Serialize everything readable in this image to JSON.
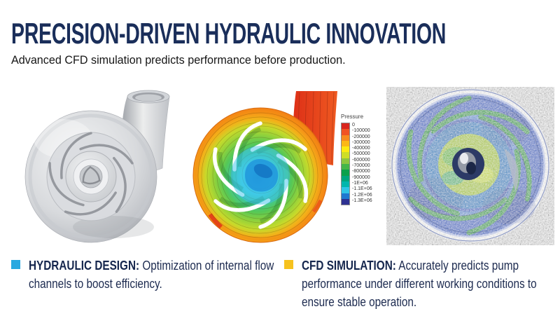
{
  "header": {
    "title": "PRECISION-DRIVEN HYDRAULIC INNOVATION",
    "subtitle": "Advanced CFD simulation predicts performance before production."
  },
  "figures": {
    "cfd_contour": {
      "legend_title": "Pressure",
      "legend_labels": [
        "0",
        "-100000",
        "-200000",
        "-300000",
        "-400000",
        "-500000",
        "-600000",
        "-700000",
        "-800000",
        "-900000",
        "-1E+06",
        "-1.1E+06",
        "-1.2E+06",
        "-1.3E+06"
      ],
      "legend_colors": [
        "#d9251d",
        "#f05323",
        "#f68b1e",
        "#fbb817",
        "#fdea11",
        "#cede26",
        "#8dc63f",
        "#45b649",
        "#0ba04c",
        "#00a57e",
        "#00b6ad",
        "#2fc4e5",
        "#1e78d0",
        "#2e3192"
      ]
    }
  },
  "bullets": [
    {
      "label": "HYDRAULIC DESIGN:",
      "text": " Optimization of internal flow channels to boost efficiency.",
      "marker_color": "#29a8e0"
    },
    {
      "label": "CFD SIMULATION:",
      "text": " Accurately predicts pump performance under different working conditions to ensure stable operation.",
      "marker_color": "#f6c21e"
    }
  ],
  "colors": {
    "title": "#1a2e5a",
    "body_text": "#1d2b50"
  }
}
